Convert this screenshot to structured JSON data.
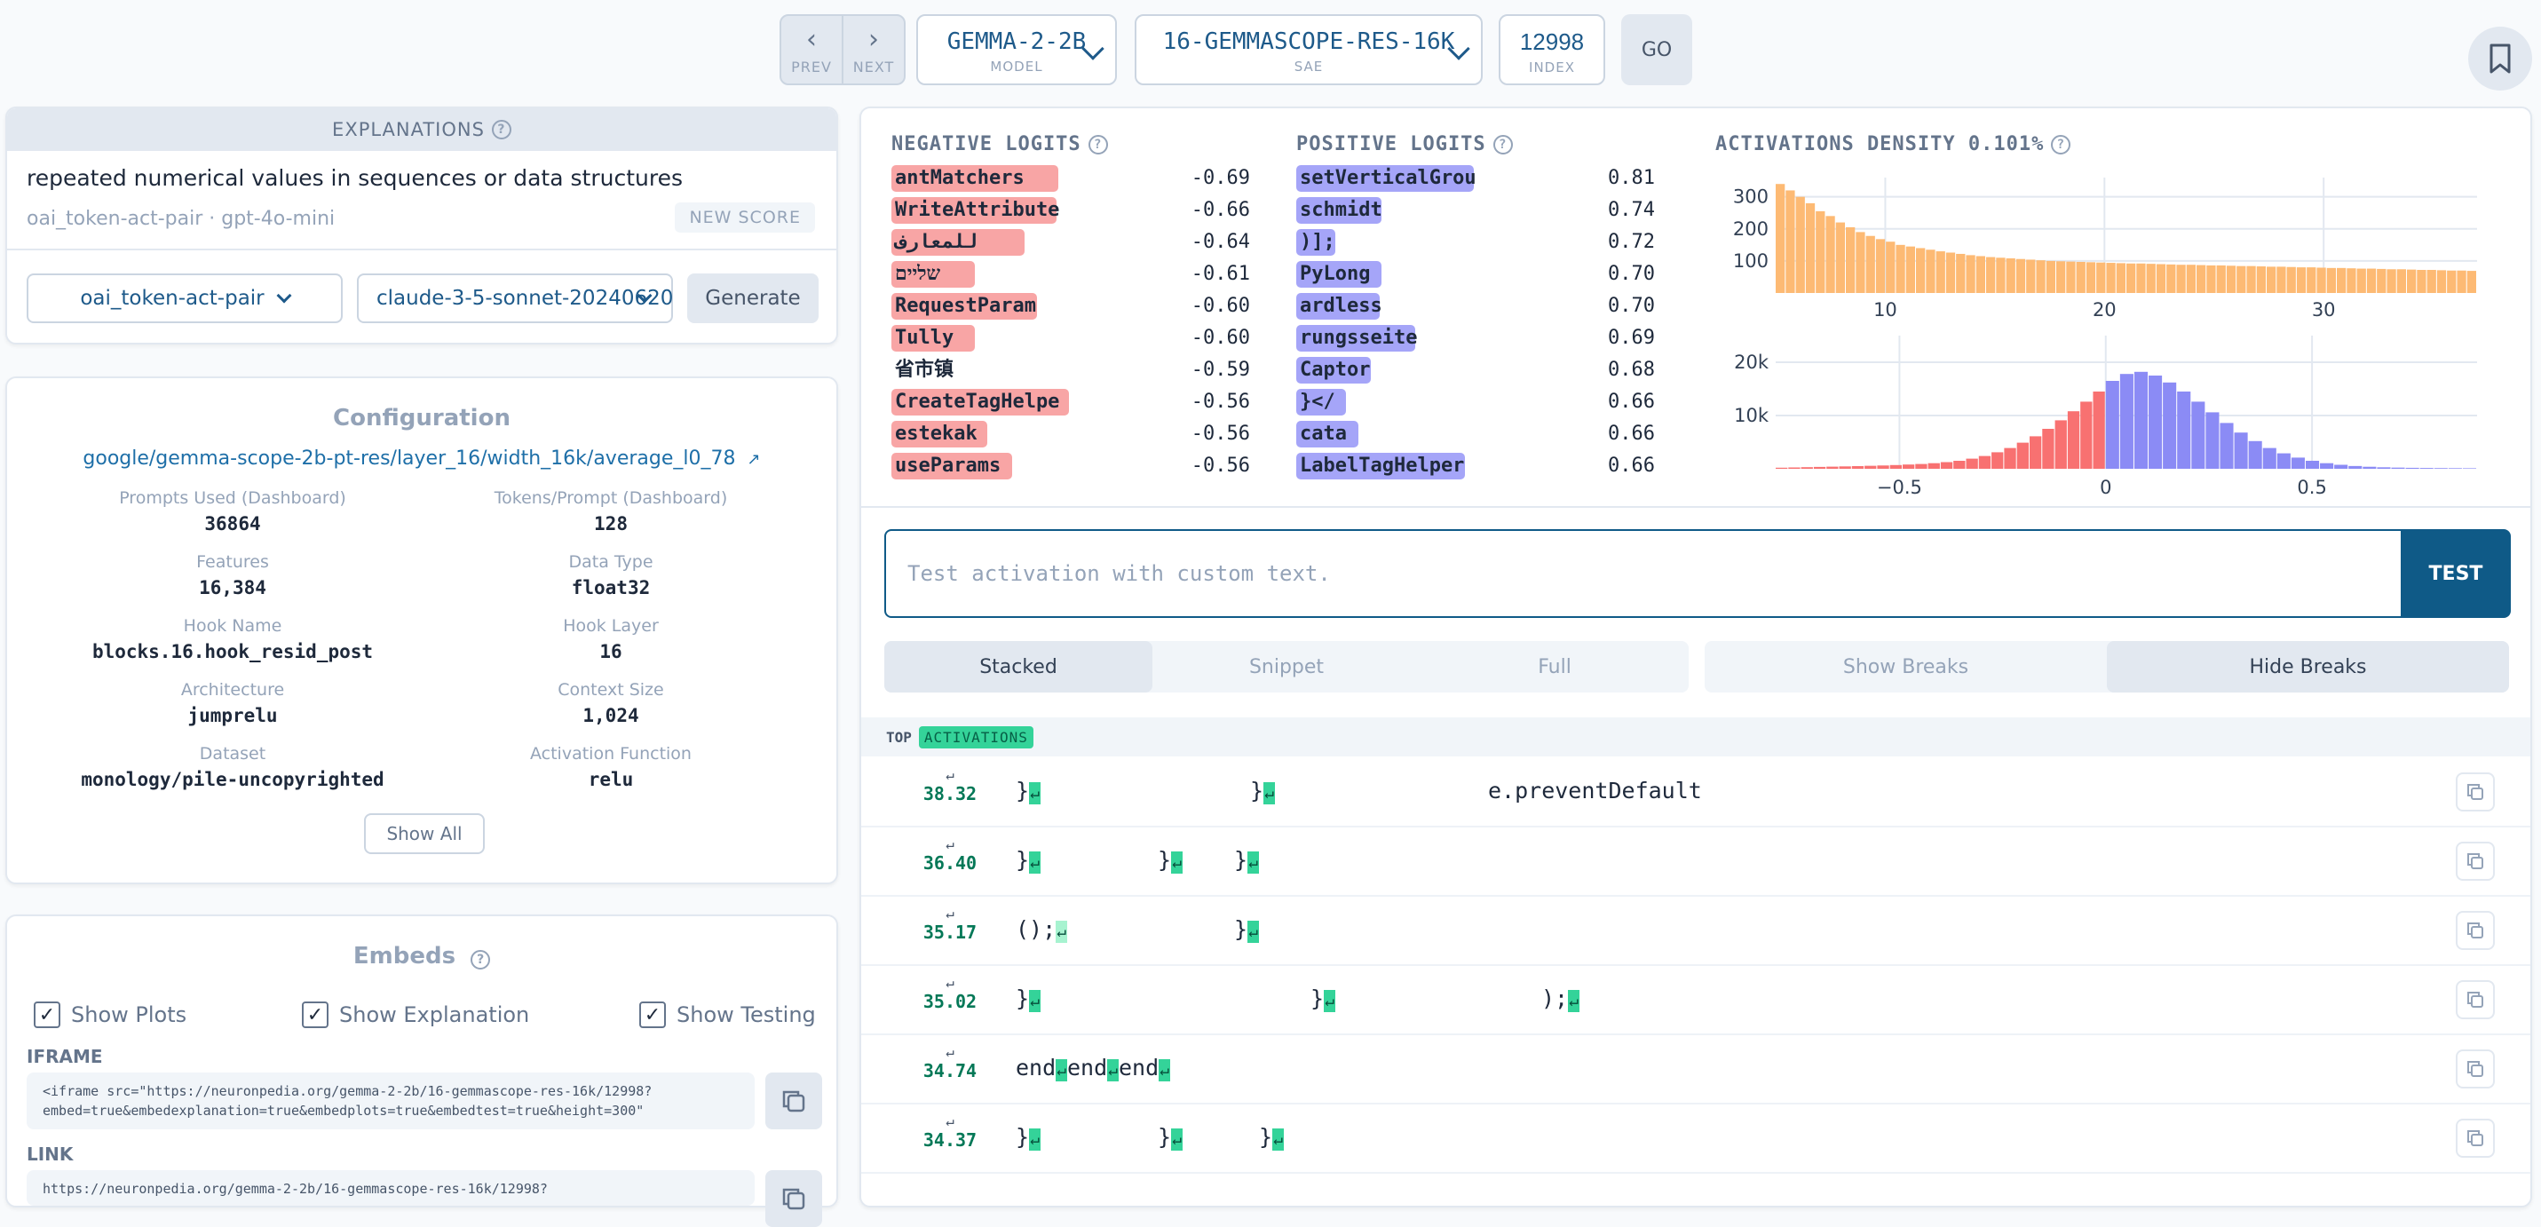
{
  "nav": {
    "prev_label": "PREV",
    "next_label": "NEXT",
    "model": {
      "value": "GEMMA-2-2B",
      "label": "MODEL"
    },
    "sae": {
      "value": "16-GEMMASCOPE-RES-16K",
      "label": "SAE"
    },
    "index": {
      "value": "12998",
      "label": "INDEX"
    },
    "go_label": "GO"
  },
  "explanations": {
    "header": "EXPLANATIONS",
    "text": "repeated numerical values in sequences or data structures",
    "meta": "oai_token-act-pair · gpt-4o-mini",
    "new_score": "NEW SCORE",
    "method_select": "oai_token-act-pair",
    "model_select": "claude-3-5-sonnet-20240620",
    "generate": "Generate"
  },
  "config": {
    "title": "Configuration",
    "link": "google/gemma-scope-2b-pt-res/layer_16/width_16k/average_l0_78",
    "fields": [
      {
        "k": "Prompts Used (Dashboard)",
        "v": "36864"
      },
      {
        "k": "Tokens/Prompt (Dashboard)",
        "v": "128"
      },
      {
        "k": "Features",
        "v": "16,384"
      },
      {
        "k": "Data Type",
        "v": "float32"
      },
      {
        "k": "Hook Name",
        "v": "blocks.16.hook_resid_post"
      },
      {
        "k": "Hook Layer",
        "v": "16"
      },
      {
        "k": "Architecture",
        "v": "jumprelu"
      },
      {
        "k": "Context Size",
        "v": "1,024"
      },
      {
        "k": "Dataset",
        "v": "monology/pile-uncopyrighted"
      },
      {
        "k": "Activation Function",
        "v": "relu"
      }
    ],
    "show_all": "Show All"
  },
  "embeds": {
    "title": "Embeds",
    "checks": [
      "Show Plots",
      "Show Explanation",
      "Show Testing"
    ],
    "iframe_label": "IFRAME",
    "iframe_line1": "<iframe src=\"https://neuronpedia.org/gemma-2-2b/16-gemmascope-res-16k/12998?",
    "iframe_line2": "embed=true&embedexplanation=true&embedplots=true&embedtest=true&height=300\"",
    "link_label": "LINK",
    "link_value": "https://neuronpedia.org/gemma-2-2b/16-gemmascope-res-16k/12998?"
  },
  "logits": {
    "neg_header": "NEGATIVE LOGITS",
    "pos_header": "POSITIVE LOGITS",
    "negative": [
      {
        "token": "antMatchers",
        "value": "-0.69"
      },
      {
        "token": "WriteAttribute",
        "value": "-0.66"
      },
      {
        "token": "للمعارف",
        "value": "-0.64"
      },
      {
        "token": "שליים",
        "value": "-0.61"
      },
      {
        "token": "RequestParam",
        "value": "-0.60"
      },
      {
        "token": " Tully",
        "value": "-0.60"
      },
      {
        "token": "省市镇",
        "value": "-0.59"
      },
      {
        "token": " CreateTagHelpe",
        "value": "-0.56"
      },
      {
        "token": " estekak",
        "value": "-0.56"
      },
      {
        "token": " useParams",
        "value": "-0.56"
      }
    ],
    "positive": [
      {
        "token": "setVerticalGrou",
        "value": "0.81"
      },
      {
        "token": "schmidt",
        "value": "0.74"
      },
      {
        "token": ")];",
        "value": "0.72"
      },
      {
        "token": " PyLong",
        "value": "0.70"
      },
      {
        "token": "ardless",
        "value": "0.70"
      },
      {
        "token": "rungsseite",
        "value": "0.69"
      },
      {
        "token": "Captor",
        "value": "0.68"
      },
      {
        "token": " }</",
        "value": "0.66"
      },
      {
        "token": " cata",
        "value": "0.66"
      },
      {
        "token": "LabelTagHelper",
        "value": "0.66"
      }
    ]
  },
  "density": {
    "header": "ACTIVATIONS DENSITY 0.101%",
    "colors": {
      "neg_bar": "#f87171",
      "pos_bar": "#8b8bf5",
      "density_bar": "#fdba74"
    }
  },
  "chart_data": [
    {
      "type": "bar",
      "title": "ACTIVATIONS DENSITY 0.101%",
      "xlabel": "",
      "ylabel": "",
      "x_ticks": [
        10,
        20,
        30
      ],
      "y_ticks": [
        100,
        200,
        300
      ],
      "x_range": [
        5,
        37
      ],
      "ylim": [
        0,
        360
      ],
      "values": [
        340,
        320,
        300,
        280,
        255,
        240,
        220,
        205,
        190,
        178,
        168,
        160,
        150,
        145,
        140,
        135,
        130,
        126,
        122,
        118,
        115,
        112,
        110,
        108,
        106,
        104,
        102,
        100,
        99,
        98,
        97,
        96,
        95,
        94,
        93,
        92,
        92,
        91,
        90,
        89,
        88,
        88,
        87,
        86,
        86,
        85,
        84,
        84,
        83,
        82,
        82,
        81,
        80,
        80,
        79,
        78,
        78,
        77,
        76,
        76,
        75,
        74,
        74,
        73,
        72,
        72,
        71,
        70,
        70,
        69
      ]
    },
    {
      "type": "bar",
      "title": "",
      "xlabel": "",
      "ylabel": "",
      "x_ticks": [
        -0.5,
        0,
        0.5
      ],
      "y_ticks": [
        "10k",
        "20k"
      ],
      "x_range": [
        -0.8,
        0.9
      ],
      "ylim": [
        0,
        25000
      ],
      "series": [
        {
          "color": "#f87171",
          "values": [
            200,
            250,
            300,
            350,
            400,
            450,
            500,
            560,
            620,
            700,
            800,
            900,
            1050,
            1250,
            1500,
            1900,
            2400,
            3100,
            3900,
            4900,
            6100,
            7500,
            9100,
            10800,
            12600,
            14500
          ]
        },
        {
          "color": "#8b8bf5",
          "values": [
            16500,
            17800,
            18200,
            17500,
            16200,
            14500,
            12600,
            10600,
            8600,
            6800,
            5200,
            3900,
            2900,
            2100,
            1500,
            1050,
            750,
            520,
            380,
            280,
            220,
            180,
            150,
            130,
            115,
            100
          ]
        }
      ]
    }
  ],
  "test": {
    "placeholder": "Test activation with custom text.",
    "button": "TEST"
  },
  "view_modes": [
    "Stacked",
    "Snippet",
    "Full"
  ],
  "break_modes": [
    "Show Breaks",
    "Hide Breaks"
  ],
  "top_activations": {
    "label": "TOP",
    "badge": "ACTIVATIONS",
    "rows": [
      {
        "value": "38.32",
        "tokens": [
          "}",
          "}",
          "e.preventDefault"
        ]
      },
      {
        "value": "36.40",
        "tokens": [
          "}",
          "}",
          "}"
        ]
      },
      {
        "value": "35.17",
        "tokens": [
          "();",
          "}"
        ]
      },
      {
        "value": "35.02",
        "tokens": [
          "}",
          "}",
          ");"
        ]
      },
      {
        "value": "34.74",
        "tokens": [
          "end",
          "end",
          "end"
        ]
      },
      {
        "value": "34.37",
        "tokens": [
          "}",
          "}",
          "}"
        ]
      }
    ]
  }
}
